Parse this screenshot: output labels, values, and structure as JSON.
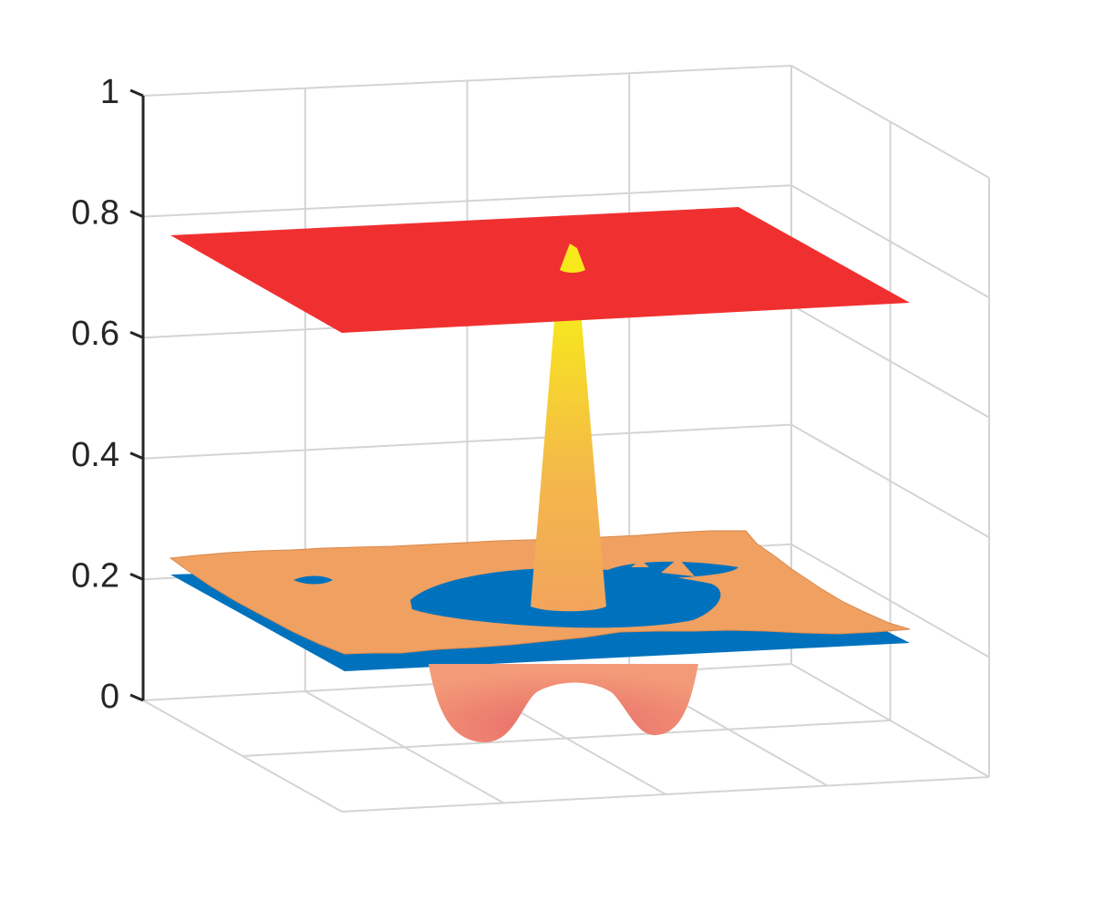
{
  "chart_data": {
    "type": "surface3d",
    "title": "",
    "xlabel": "",
    "ylabel": "",
    "zlabel": "",
    "zlim": [
      0,
      1
    ],
    "z_ticks": [
      "0",
      "0.2",
      "0.4",
      "0.6",
      "0.8",
      "1"
    ],
    "grid": true,
    "legend": "none",
    "surfaces": [
      {
        "kind": "plane",
        "z": 0.77,
        "color": "#f03030"
      },
      {
        "kind": "plane",
        "z": 0.2,
        "color": "#0072bd"
      },
      {
        "kind": "rough-surface",
        "baseline_z": 0.2,
        "peak_z": 0.76,
        "min_z": 0.0,
        "color": "#f0a060"
      }
    ]
  }
}
